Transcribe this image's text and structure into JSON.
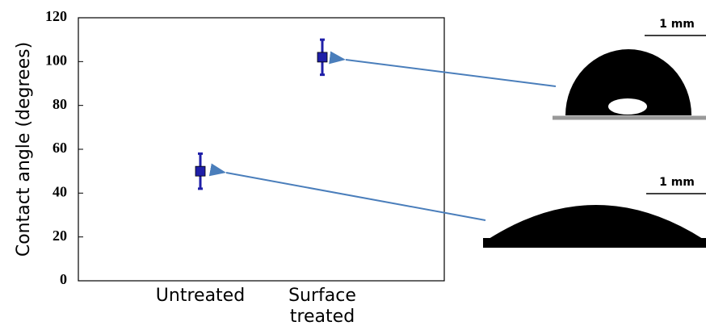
{
  "chart_data": {
    "type": "errorbar",
    "y_label": "Contact angle (degrees)",
    "categories": [
      "Untreated",
      "Surface treated"
    ],
    "values": [
      50,
      102
    ],
    "errors": [
      8,
      8
    ],
    "color": "#1f1fa8",
    "ylim": [
      0,
      120
    ],
    "yticks": [
      0,
      20,
      40,
      60,
      80,
      100,
      120
    ],
    "scale_labels": [
      "1 mm",
      "1 mm"
    ]
  }
}
